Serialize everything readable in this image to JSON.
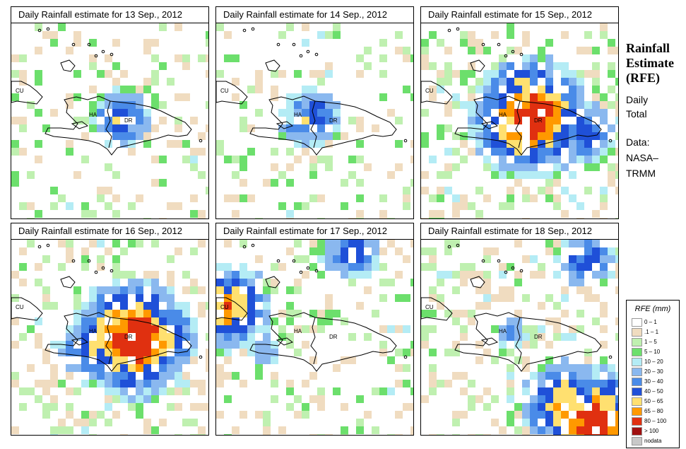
{
  "side": {
    "title_lines": [
      "Rainfall",
      "Estimate",
      "(RFE)"
    ],
    "daily_lines": [
      "Daily",
      "Total"
    ],
    "source_lines": [
      "Data:",
      "NASA–",
      "TRMM"
    ]
  },
  "panels": [
    {
      "title": "Daily Rainfall estimate for  13 Sep., 2012",
      "date": "13 Sep., 2012"
    },
    {
      "title": "Daily Rainfall estimate for  14 Sep., 2012",
      "date": "14 Sep., 2012"
    },
    {
      "title": "Daily Rainfall estimate for  15 Sep., 2012",
      "date": "15 Sep., 2012"
    },
    {
      "title": "Daily Rainfall estimate for  16 Sep., 2012",
      "date": "16 Sep., 2012"
    },
    {
      "title": "Daily Rainfall estimate for  17 Sep., 2012",
      "date": "17 Sep., 2012"
    },
    {
      "title": "Daily Rainfall estimate for  18 Sep., 2012",
      "date": "18 Sep., 2012"
    }
  ],
  "map_labels": {
    "cuba": "CU",
    "haiti": "HA",
    "dominican_republic": "DR"
  },
  "legend": {
    "title": "RFE (mm)",
    "classes": [
      {
        "label": "0 – 1",
        "color": "#ffffff"
      },
      {
        "label": ".1 – 1",
        "color": "#f0dcc0"
      },
      {
        "label": "1 – 5",
        "color": "#bff0b0"
      },
      {
        "label": "5 – 10",
        "color": "#6cdf6c"
      },
      {
        "label": "10 – 20",
        "color": "#b4ecf5"
      },
      {
        "label": "20 – 30",
        "color": "#8ab8ef"
      },
      {
        "label": "30 – 40",
        "color": "#4a8be8"
      },
      {
        "label": "40 – 50",
        "color": "#1f50d8"
      },
      {
        "label": "50 – 65",
        "color": "#ffe070"
      },
      {
        "label": "65 – 80",
        "color": "#ff9900"
      },
      {
        "label": "80 – 100",
        "color": "#e03010"
      },
      {
        "label": "> 100",
        "color": "#a01010"
      },
      {
        "label": "nodata",
        "color": "#c8c8c8"
      }
    ]
  }
}
